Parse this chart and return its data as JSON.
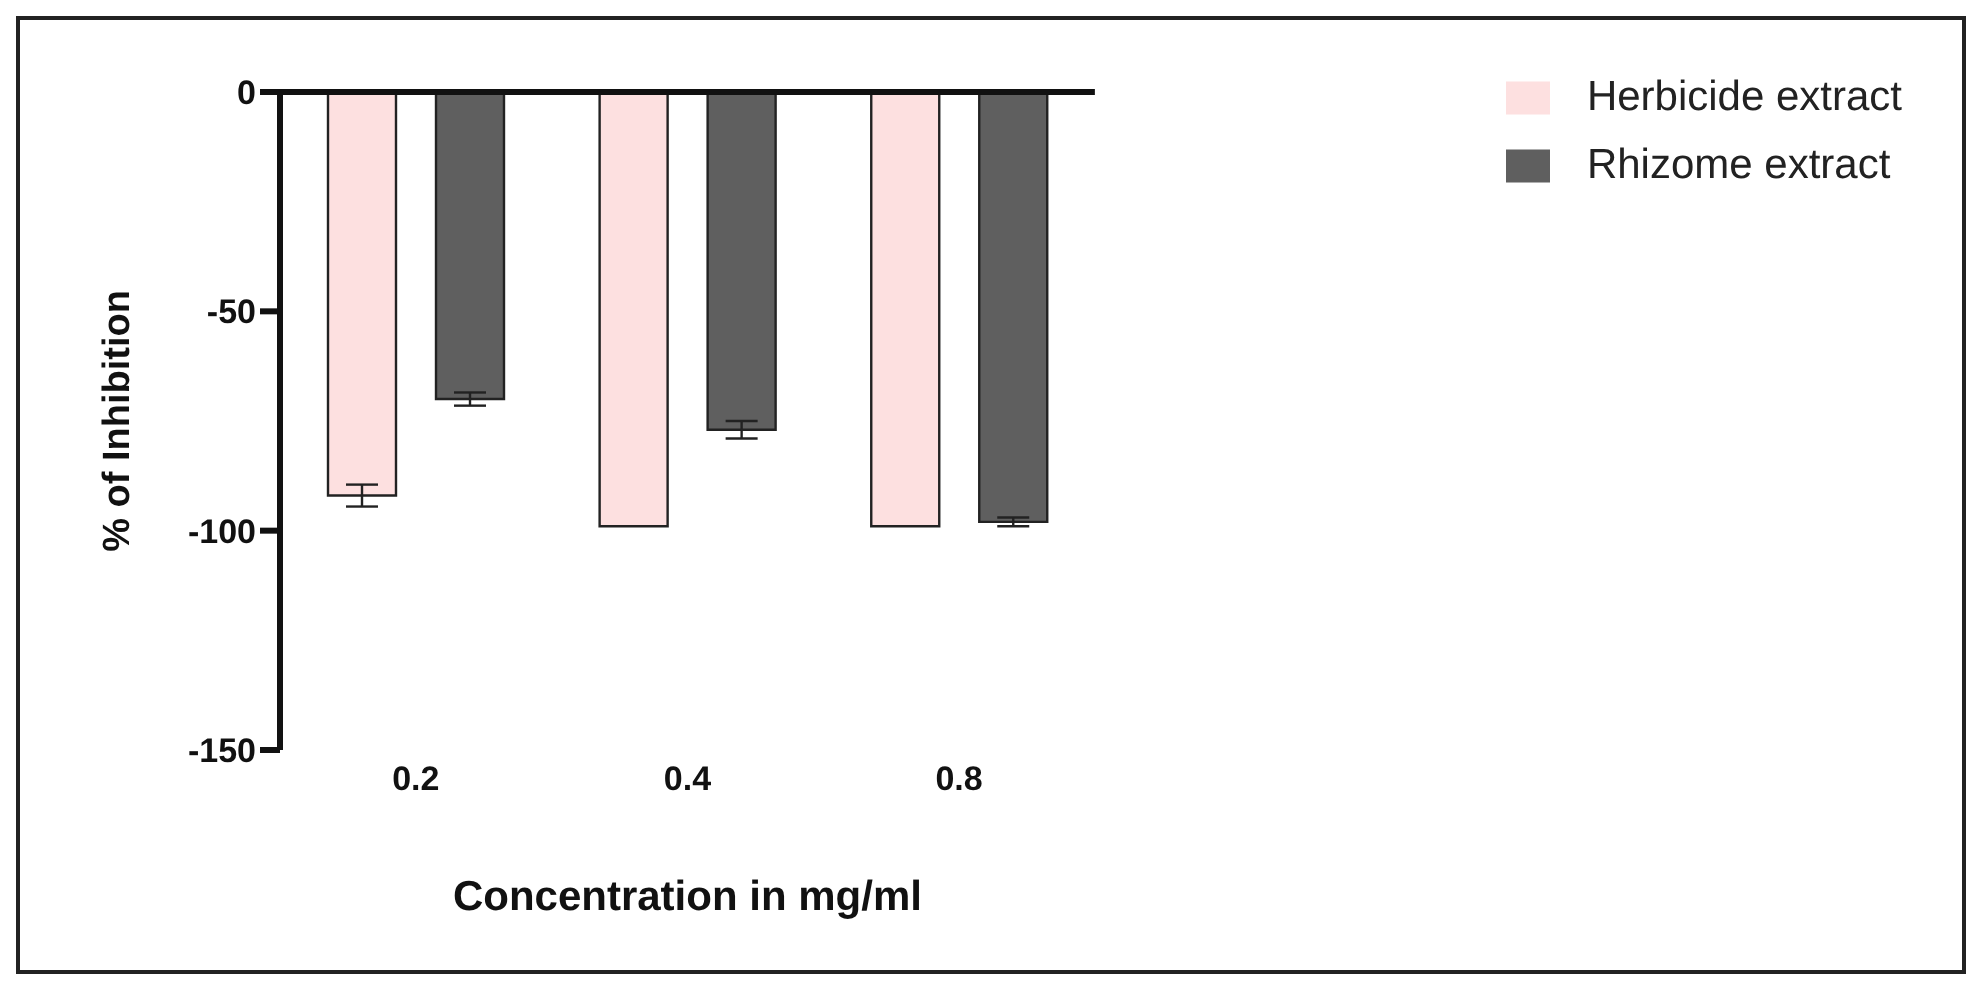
{
  "chart_data": {
    "type": "bar",
    "xlabel": "Concentration in mg/ml",
    "ylabel": "% of Inhibition",
    "categories": [
      "0.2",
      "0.4",
      "0.8"
    ],
    "series": [
      {
        "name": "Herbicide extract",
        "color": "#fde0e0",
        "values": [
          -92,
          -99,
          -99
        ],
        "errors": [
          2.5,
          null,
          null
        ]
      },
      {
        "name": "Rhizome extract",
        "color": "#5f5f5f",
        "values": [
          -70,
          -77,
          -98
        ],
        "errors": [
          1.5,
          2,
          1
        ]
      }
    ],
    "ylim": [
      -150,
      0
    ],
    "yticks": [
      -150,
      -100,
      -50,
      0
    ],
    "legend": "top right"
  }
}
